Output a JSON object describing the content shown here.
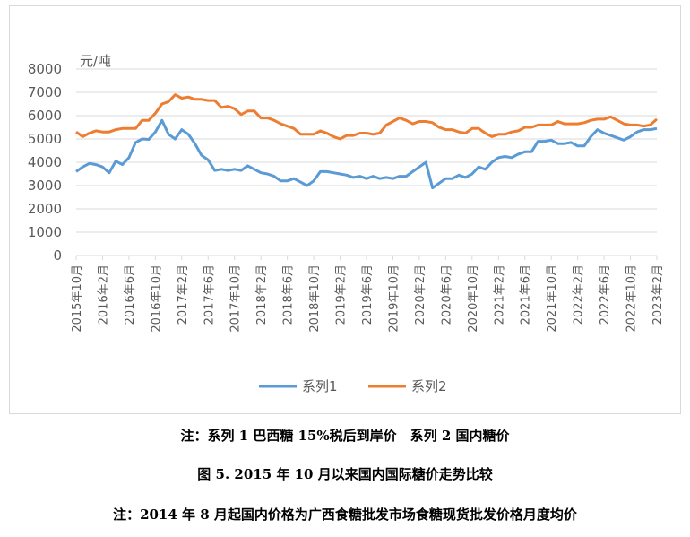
{
  "chart_data": {
    "type": "line",
    "unit_label": "元/吨",
    "ylim": [
      0,
      8000
    ],
    "yticks": [
      0,
      1000,
      2000,
      3000,
      4000,
      5000,
      6000,
      7000,
      8000
    ],
    "x_start": "2015年10月",
    "xtick_labels": [
      "2015年10月",
      "2016年2月",
      "2016年6月",
      "2016年10月",
      "2017年2月",
      "2017年6月",
      "2017年10月",
      "2018年2月",
      "2018年6月",
      "2018年10月",
      "2019年2月",
      "2019年6月",
      "2019年10月",
      "2020年2月",
      "2020年6月",
      "2020年10月",
      "2021年2月",
      "2021年6月",
      "2021年10月",
      "2022年2月",
      "2022年6月",
      "2022年10月",
      "2023年2月"
    ],
    "grid": true,
    "legend_position": "bottom",
    "series": [
      {
        "name": "系列1",
        "color": "#5b9bd5",
        "values": [
          3600,
          3800,
          3950,
          3900,
          3800,
          3550,
          4050,
          3900,
          4200,
          4850,
          5000,
          4980,
          5300,
          5800,
          5200,
          5000,
          5400,
          5200,
          4800,
          4300,
          4100,
          3650,
          3700,
          3650,
          3700,
          3650,
          3850,
          3700,
          3550,
          3500,
          3400,
          3200,
          3200,
          3300,
          3150,
          3000,
          3200,
          3600,
          3600,
          3550,
          3500,
          3450,
          3350,
          3400,
          3300,
          3400,
          3300,
          3350,
          3300,
          3400,
          3400,
          3600,
          3800,
          4000,
          2900,
          3100,
          3300,
          3300,
          3450,
          3350,
          3500,
          3800,
          3700,
          4000,
          4200,
          4250,
          4200,
          4350,
          4450,
          4450,
          4900,
          4900,
          4950,
          4800,
          4800,
          4850,
          4700,
          4700,
          5100,
          5400,
          5250,
          5150,
          5050,
          4950,
          5100,
          5300,
          5400,
          5400,
          5450
        ]
      },
      {
        "name": "系列2",
        "color": "#ed7d31",
        "values": [
          5300,
          5100,
          5250,
          5350,
          5300,
          5300,
          5400,
          5450,
          5450,
          5450,
          5800,
          5800,
          6100,
          6500,
          6600,
          6900,
          6750,
          6800,
          6700,
          6700,
          6650,
          6650,
          6350,
          6400,
          6300,
          6050,
          6200,
          6200,
          5900,
          5900,
          5800,
          5650,
          5550,
          5450,
          5200,
          5200,
          5200,
          5350,
          5250,
          5100,
          5000,
          5150,
          5150,
          5250,
          5250,
          5200,
          5250,
          5600,
          5750,
          5900,
          5800,
          5650,
          5750,
          5750,
          5700,
          5500,
          5400,
          5400,
          5300,
          5250,
          5450,
          5450,
          5250,
          5100,
          5200,
          5200,
          5300,
          5350,
          5500,
          5500,
          5600,
          5600,
          5600,
          5750,
          5650,
          5650,
          5650,
          5700,
          5800,
          5850,
          5850,
          5950,
          5800,
          5650,
          5600,
          5600,
          5550,
          5600,
          5850
        ]
      }
    ]
  },
  "captions": {
    "note1": "注：系列 1 巴西糖 15%税后到岸价　系列 2 国内糖价",
    "figure_title": "图 5. 2015 年 10 月以来国内国际糖价走势比较",
    "note2": "注：2014 年 8 月起国内价格为广西食糖批发市场食糖现货批发价格月度均价"
  }
}
